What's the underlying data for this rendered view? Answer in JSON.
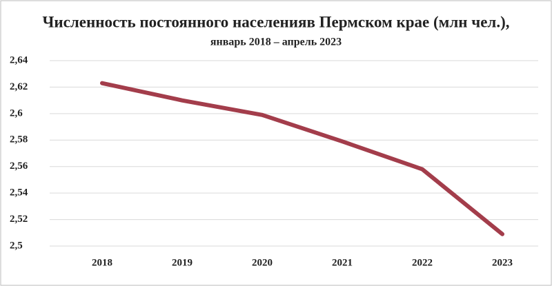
{
  "chart_data": {
    "type": "line",
    "title": "Численность постоянного населенияв Пермском крае (млн чел.),",
    "subtitle": "январь 2018 – апрель 2023",
    "categories": [
      "2018",
      "2019",
      "2020",
      "2021",
      "2022",
      "2023"
    ],
    "series": [
      {
        "color": "#a33d4b",
        "values": [
          2.623,
          2.61,
          2.599,
          2.579,
          2.558,
          2.509
        ]
      }
    ],
    "ylim": [
      2.5,
      2.64
    ],
    "yticks": [
      {
        "value": 2.5,
        "label": "2,5"
      },
      {
        "value": 2.52,
        "label": "2,52"
      },
      {
        "value": 2.54,
        "label": "2,54"
      },
      {
        "value": 2.56,
        "label": "2,56"
      },
      {
        "value": 2.58,
        "label": "2,58"
      },
      {
        "value": 2.6,
        "label": "2,6"
      },
      {
        "value": 2.62,
        "label": "2,62"
      },
      {
        "value": 2.64,
        "label": "2,64"
      }
    ],
    "grid": true
  }
}
